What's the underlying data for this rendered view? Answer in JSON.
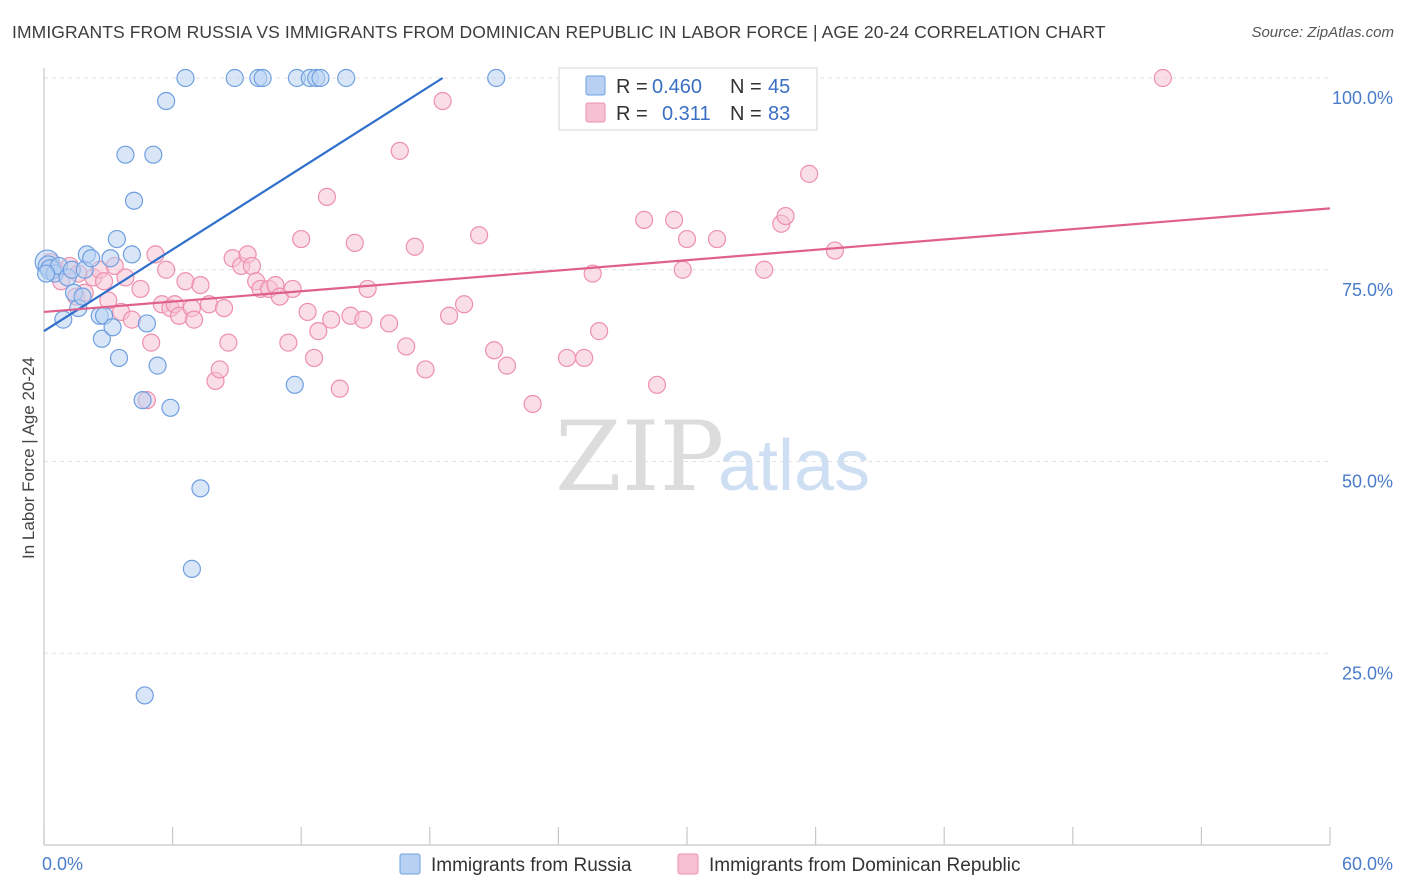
{
  "chart_data": {
    "type": "scatter",
    "title": "IMMIGRANTS FROM RUSSIA VS IMMIGRANTS FROM DOMINICAN REPUBLIC IN LABOR FORCE | AGE 20-24 CORRELATION CHART",
    "source": "Source: ZipAtlas.com",
    "ylabel": "In Labor Force | Age 20-24",
    "xlim": [
      0,
      60
    ],
    "ylim": [
      0,
      100
    ],
    "x_tick_labels": [
      "0.0%",
      "60.0%"
    ],
    "y_ticks": [
      {
        "value": 100,
        "label": "100.0%"
      },
      {
        "value": 75,
        "label": "75.0%"
      },
      {
        "value": 50,
        "label": "50.0%"
      },
      {
        "value": 25,
        "label": "25.0%"
      }
    ],
    "watermark": "ZIPatlas",
    "legend": {
      "entries": [
        {
          "r_label": "R =",
          "r_value": "0.460",
          "n_label": "N =",
          "n_value": "45"
        },
        {
          "r_label": "R =",
          "r_value": "0.311",
          "n_label": "N =",
          "n_value": "83"
        }
      ]
    },
    "series": [
      {
        "name": "Immigrants from Russia",
        "color": "#6f9fe0",
        "fill": "#b8d1f3",
        "line_color": "#2f6fcc",
        "trend": {
          "x": [
            0,
            18.6
          ],
          "y": [
            67,
            100
          ]
        },
        "points": [
          [
            0.15,
            76
          ],
          [
            0.2,
            75.5
          ],
          [
            0.3,
            75
          ],
          [
            0.5,
            74.5
          ],
          [
            0.7,
            75.5
          ],
          [
            0.9,
            68.5
          ],
          [
            1.1,
            74
          ],
          [
            1.3,
            75
          ],
          [
            1.4,
            72
          ],
          [
            1.6,
            70
          ],
          [
            1.8,
            71.5
          ],
          [
            1.9,
            75
          ],
          [
            2.0,
            77
          ],
          [
            2.2,
            76.5
          ],
          [
            2.6,
            69
          ],
          [
            2.7,
            66
          ],
          [
            2.8,
            69
          ],
          [
            3.1,
            76.5
          ],
          [
            3.2,
            67.5
          ],
          [
            3.4,
            79
          ],
          [
            3.5,
            63.5
          ],
          [
            3.8,
            90
          ],
          [
            4.1,
            77
          ],
          [
            4.2,
            84
          ],
          [
            4.6,
            58
          ],
          [
            4.7,
            19.5
          ],
          [
            4.8,
            68
          ],
          [
            5.1,
            90
          ],
          [
            5.3,
            62.5
          ],
          [
            5.7,
            97
          ],
          [
            5.9,
            57
          ],
          [
            6.6,
            100
          ],
          [
            6.9,
            36
          ],
          [
            7.3,
            46.5
          ],
          [
            8.9,
            100
          ],
          [
            10.0,
            100
          ],
          [
            10.2,
            100
          ],
          [
            11.7,
            60
          ],
          [
            11.8,
            100
          ],
          [
            12.4,
            100
          ],
          [
            12.7,
            100
          ],
          [
            12.9,
            100
          ],
          [
            14.1,
            100
          ],
          [
            21.1,
            100
          ],
          [
            0.1,
            74.5
          ]
        ]
      },
      {
        "name": "Immigrants from Dominican Republic",
        "color": "#ee8fad",
        "fill": "#f6c2d3",
        "line_color": "#e0608c",
        "trend": {
          "x": [
            0,
            60
          ],
          "y": [
            69.5,
            83
          ]
        },
        "points": [
          [
            0.3,
            76
          ],
          [
            0.5,
            75
          ],
          [
            1.2,
            75.5
          ],
          [
            1.5,
            71.5
          ],
          [
            1.9,
            72
          ],
          [
            2.3,
            74
          ],
          [
            2.6,
            75
          ],
          [
            2.8,
            73.5
          ],
          [
            3.0,
            71
          ],
          [
            3.3,
            75.5
          ],
          [
            3.6,
            69.5
          ],
          [
            3.8,
            74
          ],
          [
            4.1,
            68.5
          ],
          [
            4.5,
            72.5
          ],
          [
            4.8,
            58
          ],
          [
            5.0,
            65.5
          ],
          [
            5.2,
            77
          ],
          [
            5.5,
            70.5
          ],
          [
            5.7,
            75
          ],
          [
            5.9,
            70
          ],
          [
            6.1,
            70.5
          ],
          [
            6.3,
            69
          ],
          [
            6.6,
            73.5
          ],
          [
            6.9,
            70
          ],
          [
            7.0,
            68.5
          ],
          [
            7.3,
            73
          ],
          [
            7.7,
            70.5
          ],
          [
            8.0,
            60.5
          ],
          [
            8.2,
            62
          ],
          [
            8.4,
            70
          ],
          [
            8.6,
            65.5
          ],
          [
            8.8,
            76.5
          ],
          [
            9.2,
            75.5
          ],
          [
            9.5,
            77
          ],
          [
            9.7,
            75.5
          ],
          [
            9.9,
            73.5
          ],
          [
            10.1,
            72.5
          ],
          [
            10.5,
            72.5
          ],
          [
            10.8,
            73
          ],
          [
            11.0,
            71.5
          ],
          [
            11.4,
            65.5
          ],
          [
            11.6,
            72.5
          ],
          [
            12.0,
            79
          ],
          [
            12.3,
            69.5
          ],
          [
            12.6,
            63.5
          ],
          [
            12.8,
            67
          ],
          [
            13.2,
            84.5
          ],
          [
            13.4,
            68.5
          ],
          [
            13.8,
            59.5
          ],
          [
            14.3,
            69
          ],
          [
            14.5,
            78.5
          ],
          [
            14.9,
            68.5
          ],
          [
            15.1,
            72.5
          ],
          [
            16.1,
            68
          ],
          [
            16.6,
            90.5
          ],
          [
            16.9,
            65
          ],
          [
            17.3,
            78
          ],
          [
            17.8,
            62
          ],
          [
            18.6,
            97
          ],
          [
            18.9,
            69
          ],
          [
            19.6,
            70.5
          ],
          [
            20.3,
            79.5
          ],
          [
            21.0,
            64.5
          ],
          [
            21.6,
            62.5
          ],
          [
            22.8,
            57.5
          ],
          [
            24.4,
            63.5
          ],
          [
            25.2,
            63.5
          ],
          [
            25.6,
            74.5
          ],
          [
            25.9,
            67
          ],
          [
            28.0,
            81.5
          ],
          [
            28.6,
            60
          ],
          [
            29.4,
            81.5
          ],
          [
            29.8,
            75
          ],
          [
            30.0,
            79
          ],
          [
            31.4,
            79
          ],
          [
            33.6,
            75
          ],
          [
            34.4,
            81
          ],
          [
            34.6,
            82
          ],
          [
            35.7,
            87.5
          ],
          [
            36.9,
            77.5
          ],
          [
            52.2,
            100
          ],
          [
            0.8,
            73.5
          ],
          [
            1.6,
            74.5
          ]
        ]
      }
    ]
  }
}
